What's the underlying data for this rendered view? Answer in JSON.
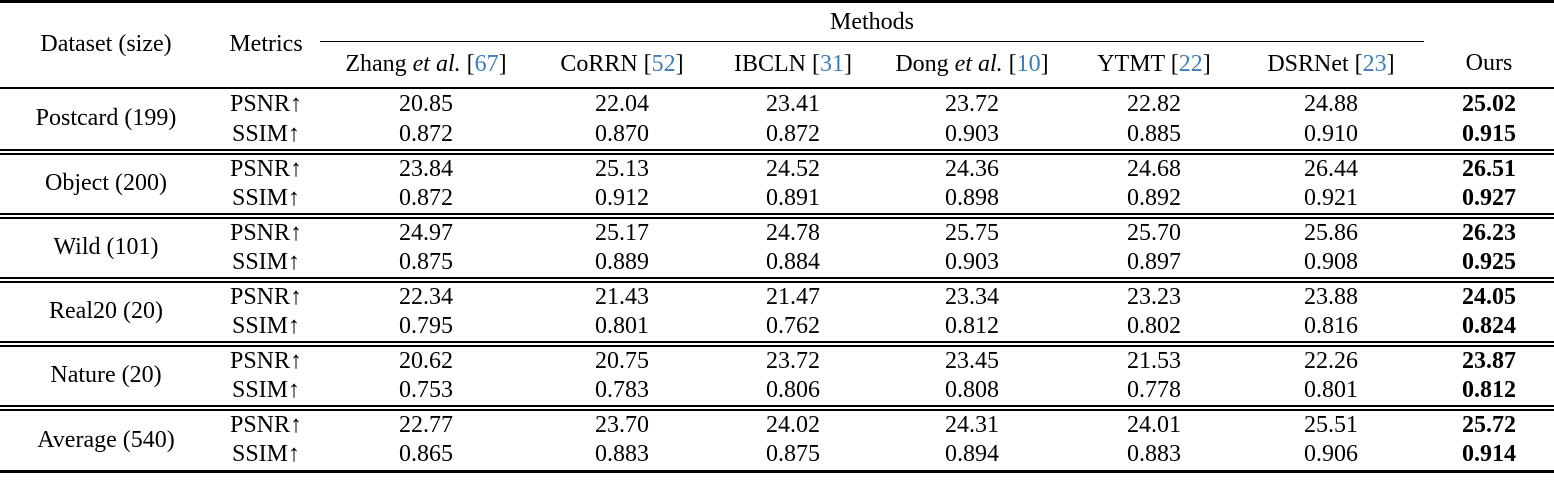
{
  "colors": {
    "citation_blue": "#3d7dbb",
    "text": "#000000",
    "background": "#ffffff"
  },
  "table": {
    "span_header": "Methods",
    "columns": {
      "dataset": "Dataset (size)",
      "metrics": "Metrics",
      "ours": "Ours"
    },
    "method_columns": [
      {
        "label": "Zhang",
        "etal": "et al.",
        "cite": "67"
      },
      {
        "label": "CoRRN",
        "etal": "",
        "cite": "52"
      },
      {
        "label": "IBCLN",
        "etal": "",
        "cite": "31"
      },
      {
        "label": "Dong",
        "etal": "et al.",
        "cite": "10"
      },
      {
        "label": "YTMT",
        "etal": "",
        "cite": "22"
      },
      {
        "label": "DSRNet",
        "etal": "",
        "cite": "23"
      }
    ],
    "groups": [
      {
        "dataset": "Postcard (199)",
        "rows": [
          {
            "metric": "PSNR↑",
            "values": [
              "20.85",
              "22.04",
              "23.41",
              "23.72",
              "22.82",
              "24.88"
            ],
            "ours": "25.02"
          },
          {
            "metric": "SSIM↑",
            "values": [
              "0.872",
              "0.870",
              "0.872",
              "0.903",
              "0.885",
              "0.910"
            ],
            "ours": "0.915"
          }
        ]
      },
      {
        "dataset": "Object (200)",
        "rows": [
          {
            "metric": "PSNR↑",
            "values": [
              "23.84",
              "25.13",
              "24.52",
              "24.36",
              "24.68",
              "26.44"
            ],
            "ours": "26.51"
          },
          {
            "metric": "SSIM↑",
            "values": [
              "0.872",
              "0.912",
              "0.891",
              "0.898",
              "0.892",
              "0.921"
            ],
            "ours": "0.927"
          }
        ]
      },
      {
        "dataset": "Wild (101)",
        "rows": [
          {
            "metric": "PSNR↑",
            "values": [
              "24.97",
              "25.17",
              "24.78",
              "25.75",
              "25.70",
              "25.86"
            ],
            "ours": "26.23"
          },
          {
            "metric": "SSIM↑",
            "values": [
              "0.875",
              "0.889",
              "0.884",
              "0.903",
              "0.897",
              "0.908"
            ],
            "ours": "0.925"
          }
        ]
      },
      {
        "dataset": "Real20 (20)",
        "rows": [
          {
            "metric": "PSNR↑",
            "values": [
              "22.34",
              "21.43",
              "21.47",
              "23.34",
              "23.23",
              "23.88"
            ],
            "ours": "24.05"
          },
          {
            "metric": "SSIM↑",
            "values": [
              "0.795",
              "0.801",
              "0.762",
              "0.812",
              "0.802",
              "0.816"
            ],
            "ours": "0.824"
          }
        ]
      },
      {
        "dataset": "Nature (20)",
        "rows": [
          {
            "metric": "PSNR↑",
            "values": [
              "20.62",
              "20.75",
              "23.72",
              "23.45",
              "21.53",
              "22.26"
            ],
            "ours": "23.87"
          },
          {
            "metric": "SSIM↑",
            "values": [
              "0.753",
              "0.783",
              "0.806",
              "0.808",
              "0.778",
              "0.801"
            ],
            "ours": "0.812"
          }
        ]
      },
      {
        "dataset": "Average (540)",
        "rows": [
          {
            "metric": "PSNR↑",
            "values": [
              "22.77",
              "23.70",
              "24.02",
              "24.31",
              "24.01",
              "25.51"
            ],
            "ours": "25.72"
          },
          {
            "metric": "SSIM↑",
            "values": [
              "0.865",
              "0.883",
              "0.875",
              "0.894",
              "0.883",
              "0.906"
            ],
            "ours": "0.914"
          }
        ]
      }
    ]
  }
}
